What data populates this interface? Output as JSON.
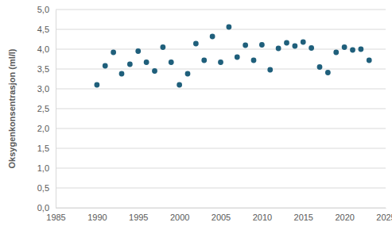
{
  "chart_data": {
    "type": "scatter",
    "y_label": "Oksygenkonsentrasjon (ml/l)",
    "x": [
      1990,
      1991,
      1992,
      1993,
      1994,
      1995,
      1996,
      1997,
      1998,
      1999,
      2000,
      2001,
      2002,
      2003,
      2004,
      2005,
      2006,
      2007,
      2008,
      2009,
      2010,
      2011,
      2012,
      2013,
      2014,
      2015,
      2016,
      2017,
      2018,
      2019,
      2020,
      2021,
      2022,
      2023
    ],
    "values": [
      3.1,
      3.58,
      3.92,
      3.38,
      3.62,
      3.95,
      3.67,
      3.45,
      4.05,
      3.67,
      3.1,
      3.38,
      4.14,
      3.72,
      4.32,
      3.67,
      4.56,
      3.8,
      4.1,
      3.72,
      4.11,
      3.48,
      4.02,
      4.16,
      4.08,
      4.18,
      4.03,
      3.55,
      3.41,
      3.92,
      4.05,
      3.98,
      4.0,
      3.72
    ],
    "color": "#1f5f7b",
    "marker": "circle",
    "xlim": [
      1985,
      2025
    ],
    "xticks": [
      1985,
      1990,
      1995,
      2000,
      2005,
      2010,
      2015,
      2020,
      2025
    ],
    "ylim": [
      0,
      5
    ],
    "yticks": [
      {
        "value": 0,
        "label": "0,0"
      },
      {
        "value": 0.5,
        "label": "0,5"
      },
      {
        "value": 1,
        "label": "1,0"
      },
      {
        "value": 1.5,
        "label": "1,5"
      },
      {
        "value": 2,
        "label": "2,0"
      },
      {
        "value": 2.5,
        "label": "2,5"
      },
      {
        "value": 3,
        "label": "3,0"
      },
      {
        "value": 3.5,
        "label": "3,5"
      },
      {
        "value": 4,
        "label": "4,0"
      },
      {
        "value": 4.5,
        "label": "4,5"
      },
      {
        "value": 5,
        "label": "5,0"
      }
    ],
    "grid": true
  }
}
